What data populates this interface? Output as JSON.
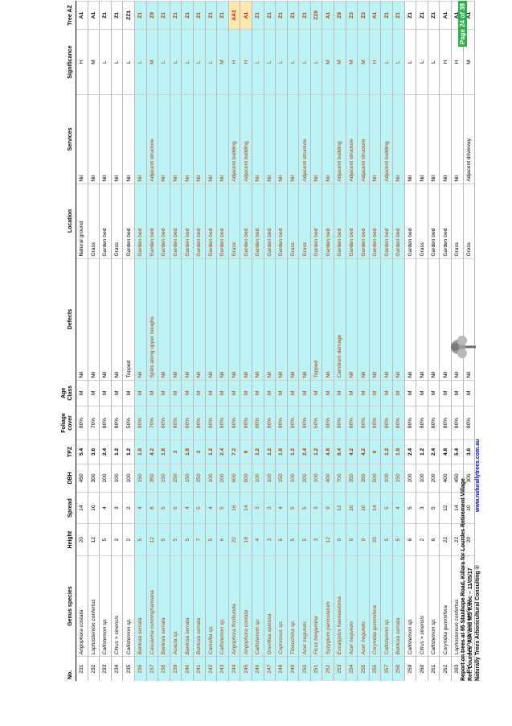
{
  "headers": {
    "no": "No.",
    "species": "Genus species",
    "height": "Height",
    "spread": "Spread",
    "dbh": "DBH",
    "tpz": "TPZ",
    "foliage": "Foliage cover",
    "age": "Age Class",
    "defects": "Defects",
    "location": "Location",
    "services": "Services",
    "significance": "Significance",
    "az": "Tree AZ"
  },
  "rows": [
    {
      "no": "231",
      "species": "Angophora costata",
      "height": "20",
      "spread": "14",
      "dbh": "450",
      "tpz": "5.4",
      "foliage": "80%",
      "age": "M",
      "defects": "Nil",
      "location": "Natural ground",
      "services": "Nil",
      "significance": "H",
      "az": "A1",
      "hl": false,
      "azhot": false
    },
    {
      "no": "232",
      "species": "Lophostemon confertus",
      "height": "12",
      "spread": "10",
      "dbh": "300",
      "tpz": "3.6",
      "foliage": "70%",
      "age": "M",
      "defects": "Nil",
      "location": "Grass",
      "services": "Nil",
      "significance": "M",
      "az": "A1",
      "hl": false,
      "azhot": false
    },
    {
      "no": "233",
      "species": "Callistemon sp.",
      "height": "5",
      "spread": "4",
      "dbh": "200",
      "tpz": "2.4",
      "foliage": "80%",
      "age": "M",
      "defects": "Nil",
      "location": "Garden bed",
      "services": "Nil",
      "significance": "L",
      "az": "Z1",
      "hl": false,
      "azhot": false
    },
    {
      "no": "234",
      "species": "Citrus × sinensis",
      "height": "2",
      "spread": "3",
      "dbh": "100",
      "tpz": "1.2",
      "foliage": "80%",
      "age": "M",
      "defects": "Nil",
      "location": "Grass",
      "services": "Nil",
      "significance": "L",
      "az": "Z1",
      "hl": false,
      "azhot": false
    },
    {
      "no": "235",
      "species": "Callistemon sp.",
      "height": "2",
      "spread": "2",
      "dbh": "100",
      "tpz": "1.2",
      "foliage": "50%",
      "age": "M",
      "defects": "Topped",
      "location": "Garden bed",
      "services": "Nil",
      "significance": "L",
      "az": "ZZ1",
      "hl": false,
      "azhot": false
    },
    {
      "no": "236",
      "species": "Banksia serrata",
      "height": "5",
      "spread": "4",
      "dbh": "150",
      "tpz": "1.8",
      "foliage": "80%",
      "age": "M",
      "defects": "Nil",
      "location": "Garden bed",
      "services": "Nil",
      "significance": "L",
      "az": "Z1",
      "hl": true,
      "azhot": false
    },
    {
      "no": "237",
      "species": "Casuarina cunninghamiana",
      "height": "12",
      "spread": "8",
      "dbh": "350",
      "tpz": "4.2",
      "foliage": "70%",
      "age": "M",
      "defects": "Splits along upper boughs",
      "location": "Garden bed",
      "services": "Adjacent structure",
      "significance": "M",
      "az": "Z9",
      "hl": true,
      "azhot": false
    },
    {
      "no": "238",
      "species": "Banksia serrata",
      "height": "5",
      "spread": "5",
      "dbh": "150",
      "tpz": "1.8",
      "foliage": "80%",
      "age": "M",
      "defects": "Nil",
      "location": "Garden bed",
      "services": "Nil",
      "significance": "L",
      "az": "Z1",
      "hl": true,
      "azhot": false
    },
    {
      "no": "239",
      "species": "Acacia sp.",
      "height": "5",
      "spread": "6",
      "dbh": "250",
      "tpz": "3",
      "foliage": "80%",
      "age": "M",
      "defects": "Nil",
      "location": "Garden bed",
      "services": "Nil",
      "significance": "L",
      "az": "Z1",
      "hl": true,
      "azhot": false
    },
    {
      "no": "240",
      "species": "Banksia serrata",
      "height": "5",
      "spread": "4",
      "dbh": "150",
      "tpz": "1.8",
      "foliage": "80%",
      "age": "M",
      "defects": "Nil",
      "location": "Garden bed",
      "services": "Nil",
      "significance": "L",
      "az": "Z1",
      "hl": true,
      "azhot": false
    },
    {
      "no": "241",
      "species": "Banksia serrata",
      "height": "7",
      "spread": "5",
      "dbh": "250",
      "tpz": "3",
      "foliage": "80%",
      "age": "M",
      "defects": "Nil",
      "location": "Garden bed",
      "services": "Nil",
      "significance": "L",
      "az": "Z1",
      "hl": true,
      "azhot": false
    },
    {
      "no": "242",
      "species": "Camellia sp.",
      "height": "5",
      "spread": "4",
      "dbh": "100",
      "tpz": "1.2",
      "foliage": "90%",
      "age": "M",
      "defects": "Nil",
      "location": "Garden bed",
      "services": "Nil",
      "significance": "L",
      "az": "Z1",
      "hl": true,
      "azhot": false
    },
    {
      "no": "243",
      "species": "Callistemon sp.",
      "height": "6",
      "spread": "5",
      "dbh": "200",
      "tpz": "2.4",
      "foliage": "80%",
      "age": "M",
      "defects": "Nil",
      "location": "Garden bed",
      "services": "Nil",
      "significance": "M",
      "az": "Z1",
      "hl": true,
      "azhot": false
    },
    {
      "no": "244",
      "species": "Angophora floribunda",
      "height": "22",
      "spread": "16",
      "dbh": "600",
      "tpz": "7.2",
      "foliage": "80%",
      "age": "M",
      "defects": "Nil",
      "location": "Grass",
      "services": "Adjacent building",
      "significance": "H",
      "az": "AA1",
      "hl": true,
      "azhot": true
    },
    {
      "no": "245",
      "species": "Angophora costata",
      "height": "16",
      "spread": "14",
      "dbh": "500",
      "tpz": "6",
      "foliage": "80%",
      "age": "M",
      "defects": "Nil",
      "location": "Garden bed",
      "services": "Adjacent building",
      "significance": "H",
      "az": "A1",
      "hl": true,
      "azhot": true
    },
    {
      "no": "246",
      "species": "Callistemon sp.",
      "height": "4",
      "spread": "3",
      "dbh": "100",
      "tpz": "1.2",
      "foliage": "80%",
      "age": "M",
      "defects": "Nil",
      "location": "Garden bed",
      "services": "Nil",
      "significance": "L",
      "az": "Z1",
      "hl": true,
      "azhot": false
    },
    {
      "no": "247",
      "species": "Grevillea spinosa",
      "height": "3",
      "spread": "3",
      "dbh": "100",
      "tpz": "1.2",
      "foliage": "80%",
      "age": "M",
      "defects": "Nil",
      "location": "Garden bed",
      "services": "Nil",
      "significance": "L",
      "az": "Z1",
      "hl": true,
      "azhot": false
    },
    {
      "no": "248",
      "species": "Cupressus sp.",
      "height": "6",
      "spread": "4",
      "dbh": "150",
      "tpz": "1.8",
      "foliage": "80%",
      "age": "M",
      "defects": "Nil",
      "location": "Garden bed",
      "services": "Nil",
      "significance": "L",
      "az": "Z1",
      "hl": true,
      "azhot": false
    },
    {
      "no": "249",
      "species": "Tibouchina sp.",
      "height": "5",
      "spread": "5",
      "dbh": "100",
      "tpz": "1.2",
      "foliage": "90%",
      "age": "M",
      "defects": "Nil",
      "location": "Grass",
      "services": "Nil",
      "significance": "L",
      "az": "Z1",
      "hl": true,
      "azhot": false
    },
    {
      "no": "250",
      "species": "Acer negundo",
      "height": "5",
      "spread": "5",
      "dbh": "200",
      "tpz": "2.4",
      "foliage": "80%",
      "age": "M",
      "defects": "Nil",
      "location": "Grass",
      "services": "Adjacent structure",
      "significance": "L",
      "az": "Z1",
      "hl": true,
      "azhot": false
    },
    {
      "no": "251",
      "species": "Ficus benjamina",
      "height": "3",
      "spread": "3",
      "dbh": "100",
      "tpz": "1.2",
      "foliage": "50%",
      "age": "M",
      "defects": "Topped",
      "location": "Garden bed",
      "services": "Nil",
      "significance": "L",
      "az": "ZZ9",
      "hl": true,
      "azhot": false
    },
    {
      "no": "252",
      "species": "Syzygium paniculatum",
      "height": "12",
      "spread": "9",
      "dbh": "400",
      "tpz": "4.8",
      "foliage": "90%",
      "age": "M",
      "defects": "Nil",
      "location": "Garden bed",
      "services": "Nil",
      "significance": "M",
      "az": "A1",
      "hl": true,
      "azhot": false
    },
    {
      "no": "253",
      "species": "Eucalyptus haemastoma",
      "height": "9",
      "spread": "12",
      "dbh": "700",
      "tpz": "8.4",
      "foliage": "80%",
      "age": "M",
      "defects": "Cambium damage",
      "location": "Garden bed",
      "services": "Adjacent building",
      "significance": "M",
      "az": "Z9",
      "hl": true,
      "azhot": false
    },
    {
      "no": "254",
      "species": "Acer negundo",
      "height": "9",
      "spread": "10",
      "dbh": "350",
      "tpz": "4.2",
      "foliage": "80%",
      "age": "M",
      "defects": "Nil",
      "location": "Garden bed",
      "services": "Adjacent structure",
      "significance": "M",
      "az": "Z3",
      "hl": true,
      "azhot": false
    },
    {
      "no": "255",
      "species": "Acer negundo",
      "height": "9",
      "spread": "10",
      "dbh": "350",
      "tpz": "4.2",
      "foliage": "80%",
      "age": "M",
      "defects": "Nil",
      "location": "Garden bed",
      "services": "Adjacent structure",
      "significance": "M",
      "az": "Z3",
      "hl": true,
      "azhot": false
    },
    {
      "no": "256",
      "species": "Corymbia gummifera",
      "height": "20",
      "spread": "14",
      "dbh": "500",
      "tpz": "6",
      "foliage": "80%",
      "age": "M",
      "defects": "Nil",
      "location": "Garden bed",
      "services": "Nil",
      "significance": "H",
      "az": "A1",
      "hl": true,
      "azhot": false
    },
    {
      "no": "257",
      "species": "Callistemon sp.",
      "height": "5",
      "spread": "5",
      "dbh": "100",
      "tpz": "1.2",
      "foliage": "80%",
      "age": "M",
      "defects": "Nil",
      "location": "Garden bed",
      "services": "Adjacent building",
      "significance": "L",
      "az": "Z1",
      "hl": true,
      "azhot": false
    },
    {
      "no": "258",
      "species": "Banksia serrata",
      "height": "5",
      "spread": "4",
      "dbh": "150",
      "tpz": "1.8",
      "foliage": "80%",
      "age": "M",
      "defects": "Nil",
      "location": "Garden bed",
      "services": "Nil",
      "significance": "L",
      "az": "Z1",
      "hl": true,
      "azhot": false
    },
    {
      "no": "259",
      "species": "Callistemon sp.",
      "height": "6",
      "spread": "5",
      "dbh": "200",
      "tpz": "2.4",
      "foliage": "80%",
      "age": "M",
      "defects": "Nil",
      "location": "Garden bed",
      "services": "Nil",
      "significance": "L",
      "az": "Z1",
      "hl": false,
      "azhot": false
    },
    {
      "no": "260",
      "species": "Citrus × sinensis",
      "height": "2",
      "spread": "3",
      "dbh": "100",
      "tpz": "1.2",
      "foliage": "80%",
      "age": "M",
      "defects": "Nil",
      "location": "Grass",
      "services": "Nil",
      "significance": "L",
      "az": "Z1",
      "hl": false,
      "azhot": false
    },
    {
      "no": "261",
      "species": "Callistemon sp.",
      "height": "6",
      "spread": "5",
      "dbh": "200",
      "tpz": "2.4",
      "foliage": "80%",
      "age": "M",
      "defects": "Nil",
      "location": "Garden bed",
      "services": "Nil",
      "significance": "L",
      "az": "Z1",
      "hl": false,
      "azhot": false
    },
    {
      "no": "262",
      "species": "Corymbia gummifera",
      "height": "22",
      "spread": "12",
      "dbh": "400",
      "tpz": "4.8",
      "foliage": "80%",
      "age": "M",
      "defects": "Nil",
      "location": "Garden bed",
      "services": "Nil",
      "significance": "H",
      "az": "A1",
      "hl": false,
      "azhot": false
    },
    {
      "no": "263",
      "species": "Lophostemon confertus",
      "height": "22",
      "spread": "14",
      "dbh": "450",
      "tpz": "5.4",
      "foliage": "80%",
      "age": "M",
      "defects": "Nil",
      "location": "Grass",
      "services": "Nil",
      "significance": "H",
      "az": "A1",
      "hl": false,
      "azhot": false
    },
    {
      "no": "264",
      "species": "Lophostemon confertus",
      "height": "20",
      "spread": "10",
      "dbh": "300",
      "tpz": "3.6",
      "foliage": "80%",
      "age": "M",
      "defects": "Nil",
      "location": "Grass",
      "services": "Adjacent driveway",
      "significance": "M",
      "az": "A1",
      "hl": false,
      "azhot": false
    }
  ],
  "footer": {
    "line1": "Report on trees at 95 Stanhope Road, Killara for Lourdes Retirement Village",
    "line2": "Ref: Lourdes_AIA and MS II.doc – 11/05/17",
    "line3": "Naturally Trees Arboricultural Consulting ©",
    "url": "www.naturallytrees.com.au",
    "page": "Page 24 of 38"
  },
  "colors": {
    "highlight_row": "#bdf3f4",
    "highlight_text": "#b13b00",
    "hot_az": "#e40000",
    "page_badge": "#2bb34a",
    "url": "#0000aa"
  }
}
